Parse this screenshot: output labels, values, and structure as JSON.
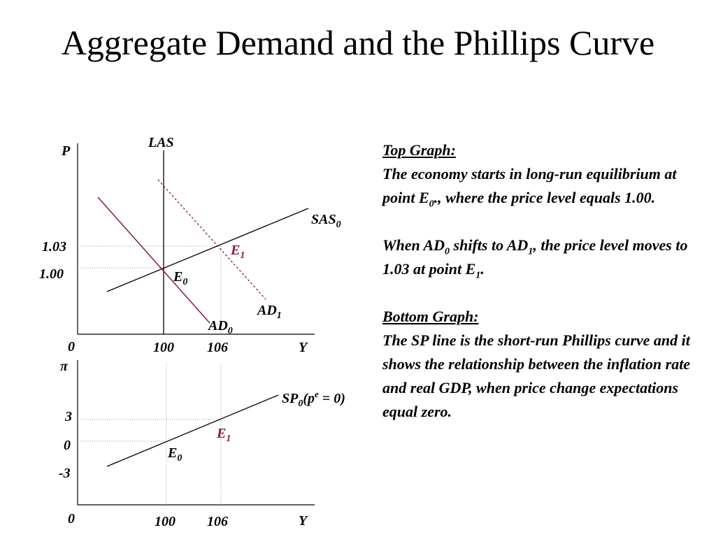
{
  "title": "Aggregate Demand and the Phillips Curve",
  "top_graph": {
    "y_axis_label": "P",
    "x_axis_label": "Y",
    "origin": "0",
    "y_ticks": [
      "1.03",
      "1.00"
    ],
    "x_ticks": [
      "100",
      "106"
    ],
    "curves": {
      "las": "LAS",
      "sas": {
        "base": "SAS",
        "sub": "0"
      },
      "ad0": {
        "base": "AD",
        "sub": "0"
      },
      "ad1": {
        "base": "AD",
        "sub": "1"
      }
    },
    "points": {
      "e0": {
        "base": "E",
        "sub": "0"
      },
      "e1": {
        "base": "E",
        "sub": "1"
      }
    }
  },
  "bottom_graph": {
    "y_axis_label": "π",
    "x_axis_label": "Y",
    "origin": "0",
    "y_ticks": [
      "3",
      "0",
      "-3"
    ],
    "x_ticks": [
      "100",
      "106"
    ],
    "curve": {
      "base": "SP",
      "sub": "0",
      "open": "(p",
      "sup": "e",
      "close": " = 0)"
    },
    "points": {
      "e0": {
        "base": "E",
        "sub": "0"
      },
      "e1": {
        "base": "E",
        "sub": "1"
      }
    }
  },
  "notes": {
    "top_heading": "Top Graph:",
    "top_text": [
      {
        "text": "The economy starts in long-run equilibrium at point E"
      },
      {
        "sub": "0"
      },
      {
        "text": "., where the price level equals 1.00."
      }
    ],
    "shift_text": [
      {
        "text": "When AD"
      },
      {
        "sub": "0"
      },
      {
        "text": " shifts to AD"
      },
      {
        "sub": "1"
      },
      {
        "text": ", the price level moves to 1.03 at point E"
      },
      {
        "sub": "1"
      },
      {
        "text": "."
      }
    ],
    "bottom_heading": "Bottom Graph:",
    "bottom_text": "The SP line is the short-run Phillips curve and it shows the relationship between the inflation rate and real GDP, when price change expectations equal zero."
  }
}
